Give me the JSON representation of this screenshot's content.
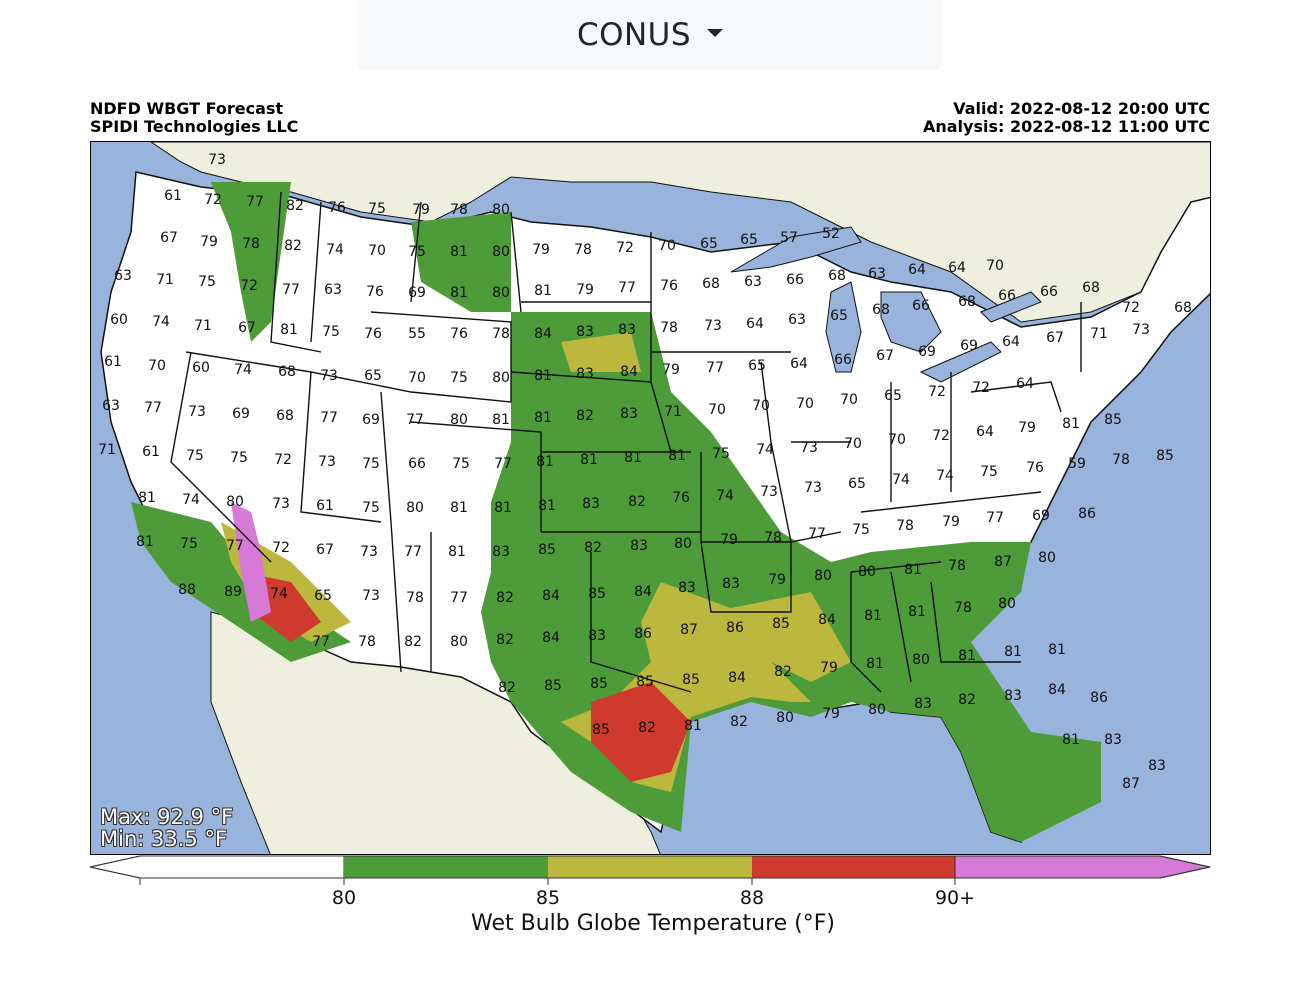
{
  "region_selector": {
    "label": "CONUS"
  },
  "header": {
    "title": "NDFD WBGT Forecast",
    "credit": "SPIDI Technologies LLC",
    "valid": "Valid: 2022-08-12 20:00 UTC",
    "analysis": "Analysis: 2022-08-12 11:00 UTC"
  },
  "stats": {
    "max": "Max: 92.9 °F",
    "min": "Min: 33.5 °F"
  },
  "colorbar": {
    "label": "Wet Bulb Globe Temperature (°F)",
    "ticks": [
      "80",
      "85",
      "88",
      "90+"
    ],
    "bins": [
      {
        "range": "<80",
        "color": "#ffffff"
      },
      {
        "range": "80-85",
        "color": "#4e9b3a"
      },
      {
        "range": "85-88",
        "color": "#bcb83e"
      },
      {
        "range": "88-90",
        "color": "#cf3a2f"
      },
      {
        "range": "90+",
        "color": "#d77ad7"
      }
    ]
  },
  "colors": {
    "ocean": "#98b3dc",
    "land_outside": "#eeefdf",
    "land_conus": "#ffffff",
    "lakes": "#98b3dc"
  },
  "station_values": [
    "73",
    "61",
    "72",
    "77",
    "82",
    "76",
    "75",
    "79",
    "78",
    "80",
    "67",
    "79",
    "78",
    "82",
    "74",
    "70",
    "75",
    "81",
    "80",
    "79",
    "78",
    "72",
    "70",
    "65",
    "65",
    "57",
    "52",
    "63",
    "71",
    "75",
    "72",
    "77",
    "63",
    "76",
    "69",
    "81",
    "80",
    "81",
    "79",
    "77",
    "76",
    "68",
    "63",
    "66",
    "68",
    "63",
    "64",
    "64",
    "70",
    "60",
    "74",
    "71",
    "67",
    "81",
    "75",
    "76",
    "55",
    "76",
    "78",
    "84",
    "83",
    "83",
    "78",
    "73",
    "64",
    "63",
    "65",
    "68",
    "66",
    "68",
    "66",
    "66",
    "68",
    "72",
    "68",
    "61",
    "70",
    "60",
    "74",
    "68",
    "73",
    "65",
    "70",
    "75",
    "80",
    "81",
    "83",
    "84",
    "79",
    "77",
    "65",
    "64",
    "66",
    "67",
    "69",
    "69",
    "64",
    "67",
    "71",
    "73",
    "63",
    "77",
    "73",
    "69",
    "68",
    "77",
    "69",
    "77",
    "80",
    "81",
    "81",
    "82",
    "83",
    "71",
    "70",
    "70",
    "70",
    "70",
    "65",
    "72",
    "72",
    "64",
    "71",
    "61",
    "75",
    "75",
    "72",
    "73",
    "75",
    "66",
    "75",
    "77",
    "81",
    "81",
    "81",
    "81",
    "75",
    "74",
    "73",
    "70",
    "70",
    "72",
    "64",
    "79",
    "81",
    "85",
    "81",
    "74",
    "80",
    "73",
    "61",
    "75",
    "80",
    "81",
    "81",
    "81",
    "83",
    "82",
    "76",
    "74",
    "73",
    "73",
    "65",
    "74",
    "74",
    "75",
    "76",
    "59",
    "78",
    "85",
    "81",
    "75",
    "77",
    "72",
    "67",
    "73",
    "77",
    "81",
    "83",
    "85",
    "82",
    "83",
    "80",
    "79",
    "78",
    "77",
    "75",
    "78",
    "79",
    "77",
    "69",
    "86",
    "88",
    "89",
    "74",
    "65",
    "73",
    "78",
    "77",
    "82",
    "84",
    "85",
    "84",
    "83",
    "83",
    "79",
    "80",
    "80",
    "81",
    "78",
    "87",
    "80",
    "77",
    "78",
    "82",
    "80",
    "82",
    "84",
    "83",
    "86",
    "87",
    "86",
    "85",
    "84",
    "81",
    "81",
    "78",
    "80",
    "82",
    "85",
    "85",
    "85",
    "85",
    "84",
    "82",
    "79",
    "81",
    "80",
    "81",
    "81",
    "81",
    "86",
    "87",
    "85",
    "82",
    "81",
    "82",
    "80",
    "79",
    "80",
    "83",
    "82",
    "83",
    "84",
    "81",
    "83",
    "83"
  ]
}
